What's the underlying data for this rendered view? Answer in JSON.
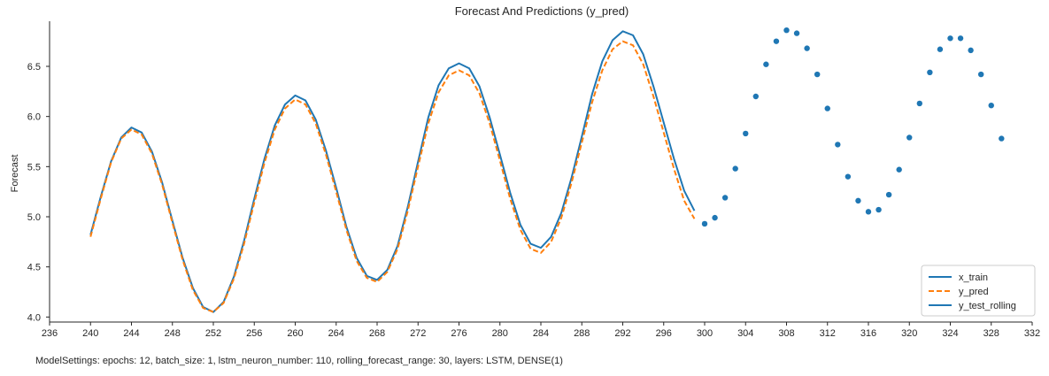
{
  "chart_data": {
    "type": "line",
    "title": "Forecast And Predictions (y_pred)",
    "xlabel": "",
    "ylabel": "Forecast",
    "xlim": [
      236,
      332
    ],
    "ylim": [
      3.95,
      6.95
    ],
    "x_ticks": [
      236,
      240,
      244,
      248,
      252,
      256,
      260,
      264,
      268,
      272,
      276,
      280,
      284,
      288,
      292,
      296,
      300,
      304,
      308,
      312,
      316,
      320,
      324,
      328,
      332
    ],
    "y_ticks": [
      4.0,
      4.5,
      5.0,
      5.5,
      6.0,
      6.5
    ],
    "y_tick_labels": [
      "4.0",
      "4.5",
      "5.0",
      "5.5",
      "6.0",
      "6.5"
    ],
    "grid": false,
    "legend_position": "lower-right",
    "series": [
      {
        "name": "x_train",
        "style": "solid",
        "color": "#1f77b4",
        "x": [
          240,
          241,
          242,
          243,
          244,
          245,
          246,
          247,
          248,
          249,
          250,
          251,
          252,
          253,
          254,
          255,
          256,
          257,
          258,
          259,
          260,
          261,
          262,
          263,
          264,
          265,
          266,
          267,
          268,
          269,
          270,
          271,
          272,
          273,
          274,
          275,
          276,
          277,
          278,
          279,
          280,
          281,
          282,
          283,
          284,
          285,
          286,
          287,
          288,
          289,
          290,
          291,
          292,
          293,
          294,
          295,
          296,
          297,
          298,
          299
        ],
        "values": [
          4.82,
          5.2,
          5.55,
          5.79,
          5.89,
          5.84,
          5.65,
          5.34,
          4.96,
          4.59,
          4.29,
          4.1,
          4.05,
          4.15,
          4.4,
          4.76,
          5.18,
          5.58,
          5.91,
          6.12,
          6.21,
          6.16,
          5.97,
          5.66,
          5.29,
          4.9,
          4.59,
          4.41,
          4.37,
          4.47,
          4.71,
          5.1,
          5.55,
          5.99,
          6.31,
          6.48,
          6.53,
          6.48,
          6.3,
          5.99,
          5.62,
          5.24,
          4.92,
          4.73,
          4.69,
          4.8,
          5.04,
          5.39,
          5.8,
          6.22,
          6.55,
          6.76,
          6.85,
          6.81,
          6.62,
          6.3,
          5.94,
          5.58,
          5.26,
          5.06
        ]
      },
      {
        "name": "y_pred",
        "style": "dashed",
        "color": "#ff7f0e",
        "x": [
          240,
          241,
          242,
          243,
          244,
          245,
          246,
          247,
          248,
          249,
          250,
          251,
          252,
          253,
          254,
          255,
          256,
          257,
          258,
          259,
          260,
          261,
          262,
          263,
          264,
          265,
          266,
          267,
          268,
          269,
          270,
          271,
          272,
          273,
          274,
          275,
          276,
          277,
          278,
          279,
          280,
          281,
          282,
          283,
          284,
          285,
          286,
          287,
          288,
          289,
          290,
          291,
          292,
          293,
          294,
          295,
          296,
          297,
          298,
          299
        ],
        "values": [
          4.8,
          5.18,
          5.54,
          5.78,
          5.87,
          5.82,
          5.63,
          5.32,
          4.94,
          4.57,
          4.27,
          4.09,
          4.05,
          4.14,
          4.38,
          4.73,
          5.14,
          5.54,
          5.87,
          6.08,
          6.17,
          6.12,
          5.93,
          5.62,
          5.25,
          4.87,
          4.56,
          4.39,
          4.35,
          4.45,
          4.68,
          5.06,
          5.5,
          5.93,
          6.24,
          6.41,
          6.46,
          6.41,
          6.23,
          5.93,
          5.56,
          5.18,
          4.87,
          4.68,
          4.64,
          4.75,
          4.99,
          5.34,
          5.74,
          6.14,
          6.46,
          6.67,
          6.75,
          6.71,
          6.52,
          6.2,
          5.84,
          5.48,
          5.16,
          4.98
        ]
      },
      {
        "name": "y_test_rolling",
        "style": "points",
        "color": "#1f77b4",
        "x": [
          300,
          301,
          302,
          303,
          304,
          305,
          306,
          307,
          308,
          309,
          310,
          311,
          312,
          313,
          314,
          315,
          316,
          317,
          318,
          319,
          320,
          321,
          322,
          323,
          324,
          325,
          326,
          327,
          328,
          329
        ],
        "values": [
          4.93,
          4.99,
          5.19,
          5.48,
          5.83,
          6.2,
          6.52,
          6.75,
          6.86,
          6.83,
          6.68,
          6.42,
          6.08,
          5.72,
          5.4,
          5.16,
          5.05,
          5.07,
          5.22,
          5.47,
          5.79,
          6.13,
          6.44,
          6.67,
          6.78,
          6.78,
          6.66,
          6.42,
          6.11,
          5.78
        ]
      }
    ]
  },
  "footer": {
    "settings_text": "ModelSettings: epochs: 12,  batch_size: 1,  lstm_neuron_number: 110,  rolling_forecast_range: 30,  layers: LSTM, DENSE(1)"
  }
}
